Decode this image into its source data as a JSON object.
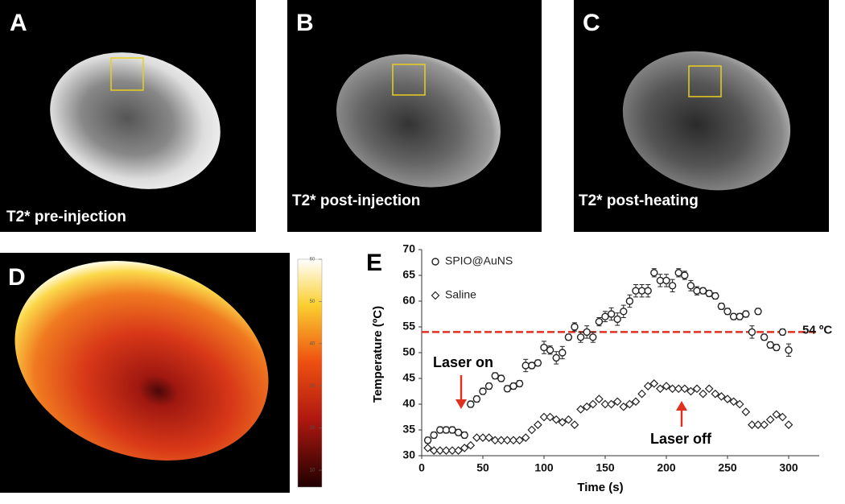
{
  "panels": [
    {
      "label": "A",
      "caption": "T2* pre-injection"
    },
    {
      "label": "B",
      "caption": "T2* post-injection"
    },
    {
      "label": "C",
      "caption": "T2* post-heating"
    },
    {
      "label": "D"
    }
  ],
  "colorbar": {
    "lim": [
      6,
      60
    ],
    "ticks": [
      10,
      20,
      30,
      40,
      50,
      60
    ]
  },
  "chart_data": {
    "type": "scatter",
    "panel_label": "E",
    "x_label": "Time (s)",
    "y_label": "Temperature (ºC)",
    "xlim": [
      0,
      325
    ],
    "xticks": [
      0,
      50,
      100,
      150,
      200,
      250,
      300
    ],
    "ylim": [
      30,
      70
    ],
    "yticks": [
      30,
      35,
      40,
      45,
      50,
      55,
      60,
      65,
      70
    ],
    "x": [
      5,
      10,
      15,
      20,
      25,
      30,
      35,
      40,
      45,
      50,
      55,
      60,
      65,
      70,
      75,
      80,
      85,
      90,
      95,
      100,
      105,
      110,
      115,
      120,
      125,
      130,
      135,
      140,
      145,
      150,
      155,
      160,
      165,
      170,
      175,
      180,
      185,
      190,
      195,
      200,
      205,
      210,
      215,
      220,
      225,
      230,
      235,
      240,
      245,
      250,
      255,
      260,
      265,
      270,
      275,
      280,
      285,
      290,
      295,
      300
    ],
    "series": [
      {
        "name": "SPIO@AuNS",
        "color": "#222222",
        "marker": "circle",
        "values": [
          33,
          34,
          35,
          35,
          35,
          34.5,
          34,
          40,
          41,
          42.5,
          43.5,
          45.5,
          45,
          43,
          43.5,
          44,
          47.5,
          47.5,
          48,
          51,
          50.5,
          49,
          50,
          53,
          55,
          53,
          54,
          53,
          56,
          57,
          57.5,
          56.5,
          58,
          60,
          62,
          62,
          62,
          65.5,
          64,
          64,
          63,
          65.5,
          65,
          63,
          62,
          62,
          61.5,
          61,
          59,
          58,
          57,
          57,
          57.5,
          54,
          58,
          53,
          51.5,
          51,
          54,
          50.5
        ],
        "errors": [
          0.6,
          0.6,
          0.6,
          0.6,
          0.6,
          0.6,
          0.6,
          0.6,
          0.6,
          0.6,
          0.6,
          0.6,
          0.6,
          0.6,
          0.6,
          0.6,
          1.2,
          0.6,
          0.6,
          1.2,
          0.8,
          1.2,
          1.2,
          0.6,
          0.8,
          1,
          1.2,
          1,
          0.8,
          1,
          1.2,
          1.2,
          1.2,
          1.2,
          1.2,
          1.2,
          1.2,
          0.8,
          1.2,
          1.2,
          1.2,
          0.8,
          0.8,
          1,
          0.8,
          0.6,
          0.6,
          0.6,
          0.6,
          0.6,
          0.6,
          0.6,
          0.6,
          1.2,
          0.6,
          0.6,
          0.6,
          0.6,
          0.6,
          1.2
        ]
      },
      {
        "name": "Saline",
        "color": "#222222",
        "marker": "diamond",
        "values": [
          31.5,
          31,
          31,
          31,
          31,
          31,
          31.5,
          32,
          33.5,
          33.5,
          33.5,
          33,
          33,
          33,
          33,
          33,
          33.5,
          35,
          36,
          37.5,
          37.5,
          37,
          36.5,
          37,
          36,
          39,
          39.5,
          40,
          41,
          40,
          40,
          40.5,
          39.5,
          40,
          40.5,
          42,
          43.5,
          44,
          43,
          43.5,
          43,
          43,
          43,
          42.5,
          43,
          42,
          43,
          42,
          41.5,
          41,
          40.5,
          40,
          38.5,
          36,
          36,
          36,
          37,
          38,
          37.5,
          36
        ]
      }
    ],
    "hline": {
      "value": 54,
      "label": "54 ºC",
      "color": "#e03020"
    },
    "annotations": [
      "Laser on",
      "Laser off"
    ]
  }
}
